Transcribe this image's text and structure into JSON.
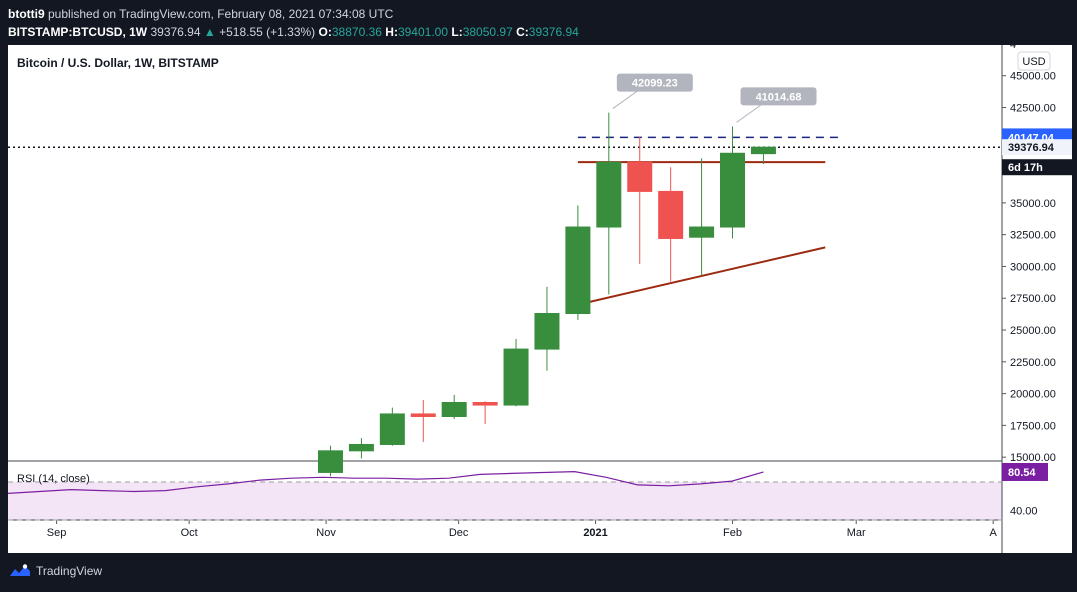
{
  "header": {
    "publisher": "btotti9",
    "published_text": "published on TradingView.com, February 08, 2021 07:34:08 UTC",
    "symbol": "BITSTAMP:BTCUSD",
    "interval": "1W",
    "last": "39376.94",
    "change": "+518.55 (+1.33%)",
    "open_label": "O:",
    "open": "38870.36",
    "high_label": "H:",
    "high": "39401.00",
    "low_label": "L:",
    "low": "38050.97",
    "close_label": "C:",
    "close": "39376.94"
  },
  "chart_title": "Bitcoin / U.S. Dollar, 1W, BITSTAMP",
  "currency_badge": "USD",
  "price_badges": {
    "resistance": "40147.04",
    "last": "39376.94",
    "countdown": "6d 17h"
  },
  "annotations": [
    "42099.23",
    "41014.68"
  ],
  "rsi": {
    "label": "RSI (14, close)",
    "value": "80.54",
    "ticks": [
      "40.00"
    ],
    "values": [
      58,
      60,
      62,
      61,
      60,
      61,
      65,
      68,
      72,
      74,
      75,
      74,
      74,
      73,
      74,
      78,
      79,
      80,
      81,
      75,
      67,
      66,
      68,
      71,
      80.54
    ]
  },
  "footer": {
    "brand": "TradingView"
  },
  "colors": {
    "up": "#388e3c",
    "down": "#ef5350",
    "line": "#9c2a10",
    "dash": "#1a237e",
    "badge": "#2962ff",
    "rsi": "#7b1fa2"
  },
  "chart_data": {
    "type": "candlestick",
    "title": "Bitcoin / U.S. Dollar, 1W, BITSTAMP",
    "y_ticks": [
      45000,
      42500,
      40000,
      37500,
      35000,
      32500,
      30000,
      27500,
      25000,
      22500,
      20000,
      17500,
      15000
    ],
    "y_tick_labels": [
      "45000.00",
      "42500.00",
      "40000.00",
      "37500.00",
      "35000.00",
      "32500.00",
      "30000.00",
      "27500.00",
      "25000.00",
      "22500.00",
      "20000.00",
      "17500.00",
      "15000.00"
    ],
    "ylim": [
      14700,
      47100
    ],
    "x_labels": [
      {
        "text": "Sep",
        "date": "2020-09-01"
      },
      {
        "text": "Oct",
        "date": "2020-10-01"
      },
      {
        "text": "Nov",
        "date": "2020-11-01"
      },
      {
        "text": "Dec",
        "date": "2020-12-01"
      },
      {
        "text": "2021",
        "date": "2021-01-01",
        "bold": true
      },
      {
        "text": "Feb",
        "date": "2021-02-01"
      },
      {
        "text": "Mar",
        "date": "2021-03-01"
      },
      {
        "text": "A",
        "date": "2021-04-01"
      }
    ],
    "xlim": [
      "2020-08-21",
      "2021-04-03"
    ],
    "candles": [
      {
        "date": "2020-11-02",
        "open": 13800,
        "high": 15900,
        "low": 13500,
        "close": 15500
      },
      {
        "date": "2020-11-09",
        "open": 15500,
        "high": 16500,
        "low": 14900,
        "close": 16000
      },
      {
        "date": "2020-11-16",
        "open": 16000,
        "high": 18900,
        "low": 15900,
        "close": 18400
      },
      {
        "date": "2020-11-23",
        "open": 18400,
        "high": 19500,
        "low": 16200,
        "close": 18200
      },
      {
        "date": "2020-11-30",
        "open": 18200,
        "high": 19900,
        "low": 18000,
        "close": 19300
      },
      {
        "date": "2020-12-07",
        "open": 19300,
        "high": 19400,
        "low": 17600,
        "close": 19100
      },
      {
        "date": "2020-12-14",
        "open": 19100,
        "high": 24300,
        "low": 19000,
        "close": 23500
      },
      {
        "date": "2020-12-21",
        "open": 23500,
        "high": 28400,
        "low": 21800,
        "close": 26300
      },
      {
        "date": "2020-12-28",
        "open": 26300,
        "high": 34800,
        "low": 25800,
        "close": 33100
      },
      {
        "date": "2021-01-04",
        "open": 33100,
        "high": 42099.23,
        "low": 27800,
        "close": 38200
      },
      {
        "date": "2021-01-11",
        "open": 38200,
        "high": 40200,
        "low": 30200,
        "close": 35900
      },
      {
        "date": "2021-01-18",
        "open": 35900,
        "high": 37800,
        "low": 28800,
        "close": 32200
      },
      {
        "date": "2021-01-25",
        "open": 32300,
        "high": 38500,
        "low": 29300,
        "close": 33100
      },
      {
        "date": "2021-02-01",
        "open": 33100,
        "high": 41014.68,
        "low": 32200,
        "close": 38900
      },
      {
        "date": "2021-02-08",
        "open": 38870.36,
        "high": 39401.0,
        "low": 38050.97,
        "close": 39376.94
      }
    ],
    "lines": [
      {
        "kind": "horizontal-resistance",
        "from": "2020-12-28",
        "to": "2021-02-22",
        "value": 38200
      },
      {
        "kind": "ascending-trendline",
        "from": {
          "date": "2020-12-28",
          "value": 27000
        },
        "to": {
          "date": "2021-02-22",
          "value": 31500
        }
      },
      {
        "kind": "dashed-level",
        "from": "2020-12-28",
        "to": "2021-02-26",
        "value": 40147.04
      },
      {
        "kind": "dotted-last-price",
        "value": 39376.94
      }
    ]
  }
}
